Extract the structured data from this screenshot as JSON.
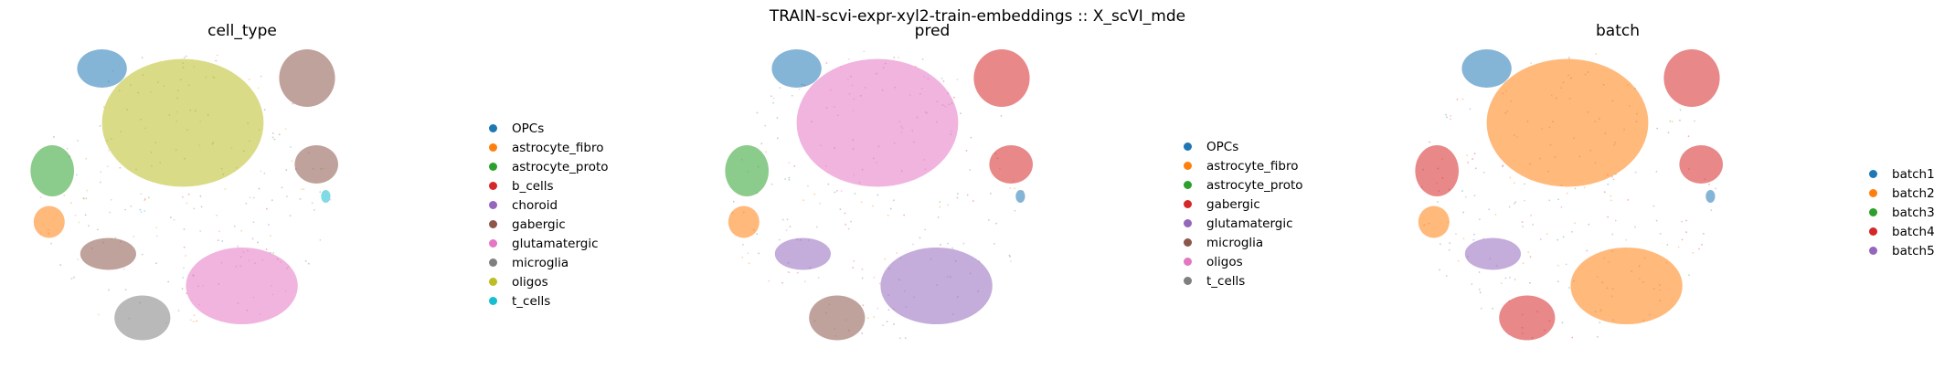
{
  "suptitle": "TRAIN-scvi-expr-xyl2-train-embeddings :: X_scVI_mde",
  "chart_data": [
    {
      "type": "scatter",
      "title": "cell_type",
      "axes_visible": false,
      "legend_placement": "right",
      "categories": [
        {
          "name": "OPCs",
          "color": "#1f77b4"
        },
        {
          "name": "astrocyte_fibro",
          "color": "#ff7f0e"
        },
        {
          "name": "astrocyte_proto",
          "color": "#2ca02c"
        },
        {
          "name": "b_cells",
          "color": "#d62728"
        },
        {
          "name": "choroid",
          "color": "#9467bd"
        },
        {
          "name": "gabergic",
          "color": "#8c564b"
        },
        {
          "name": "glutamatergic",
          "color": "#e377c2"
        },
        {
          "name": "microglia",
          "color": "#7f7f7f"
        },
        {
          "name": "oligos",
          "color": "#bcbd22"
        },
        {
          "name": "t_cells",
          "color": "#17becf"
        }
      ],
      "clusters": [
        {
          "category": "oligos",
          "cx": 0.5,
          "cy": 0.27
        },
        {
          "category": "OPCs",
          "cx": 0.24,
          "cy": 0.1
        },
        {
          "category": "astrocyte_proto",
          "cx": 0.08,
          "cy": 0.42
        },
        {
          "category": "astrocyte_fibro",
          "cx": 0.07,
          "cy": 0.58
        },
        {
          "category": "gabergic",
          "cx": 0.26,
          "cy": 0.68
        },
        {
          "category": "glutamatergic",
          "cx": 0.69,
          "cy": 0.78
        },
        {
          "category": "microglia",
          "cx": 0.37,
          "cy": 0.88
        },
        {
          "category": "gabergic",
          "cx": 0.9,
          "cy": 0.13
        },
        {
          "category": "gabergic",
          "cx": 0.93,
          "cy": 0.4
        },
        {
          "category": "t_cells",
          "cx": 0.96,
          "cy": 0.5
        }
      ]
    },
    {
      "type": "scatter",
      "title": "pred",
      "axes_visible": false,
      "legend_placement": "right",
      "categories": [
        {
          "name": "OPCs",
          "color": "#1f77b4"
        },
        {
          "name": "astrocyte_fibro",
          "color": "#ff7f0e"
        },
        {
          "name": "astrocyte_proto",
          "color": "#2ca02c"
        },
        {
          "name": "gabergic",
          "color": "#d62728"
        },
        {
          "name": "glutamatergic",
          "color": "#9467bd"
        },
        {
          "name": "microglia",
          "color": "#8c564b"
        },
        {
          "name": "oligos",
          "color": "#e377c2"
        },
        {
          "name": "t_cells",
          "color": "#7f7f7f"
        }
      ],
      "clusters": [
        {
          "category": "oligos",
          "cx": 0.5,
          "cy": 0.27
        },
        {
          "category": "OPCs",
          "cx": 0.24,
          "cy": 0.1
        },
        {
          "category": "astrocyte_proto",
          "cx": 0.08,
          "cy": 0.42
        },
        {
          "category": "astrocyte_fibro",
          "cx": 0.07,
          "cy": 0.58
        },
        {
          "category": "glutamatergic",
          "cx": 0.26,
          "cy": 0.68
        },
        {
          "category": "glutamatergic",
          "cx": 0.69,
          "cy": 0.78
        },
        {
          "category": "microglia",
          "cx": 0.37,
          "cy": 0.88
        },
        {
          "category": "gabergic",
          "cx": 0.9,
          "cy": 0.13
        },
        {
          "category": "gabergic",
          "cx": 0.93,
          "cy": 0.4
        },
        {
          "category": "OPCs",
          "cx": 0.96,
          "cy": 0.5
        }
      ]
    },
    {
      "type": "scatter",
      "title": "batch",
      "axes_visible": false,
      "legend_placement": "right",
      "categories": [
        {
          "name": "batch1",
          "color": "#1f77b4"
        },
        {
          "name": "batch2",
          "color": "#ff7f0e"
        },
        {
          "name": "batch3",
          "color": "#2ca02c"
        },
        {
          "name": "batch4",
          "color": "#d62728"
        },
        {
          "name": "batch5",
          "color": "#9467bd"
        }
      ],
      "clusters": [
        {
          "category": "batch2",
          "cx": 0.5,
          "cy": 0.27
        },
        {
          "category": "batch1",
          "cx": 0.24,
          "cy": 0.1
        },
        {
          "category": "batch4",
          "cx": 0.08,
          "cy": 0.42
        },
        {
          "category": "batch2",
          "cx": 0.07,
          "cy": 0.58
        },
        {
          "category": "batch5",
          "cx": 0.26,
          "cy": 0.68
        },
        {
          "category": "batch2",
          "cx": 0.69,
          "cy": 0.78
        },
        {
          "category": "batch4",
          "cx": 0.37,
          "cy": 0.88
        },
        {
          "category": "batch4",
          "cx": 0.9,
          "cy": 0.13
        },
        {
          "category": "batch4",
          "cx": 0.93,
          "cy": 0.4
        },
        {
          "category": "batch1",
          "cx": 0.96,
          "cy": 0.5
        }
      ]
    }
  ]
}
